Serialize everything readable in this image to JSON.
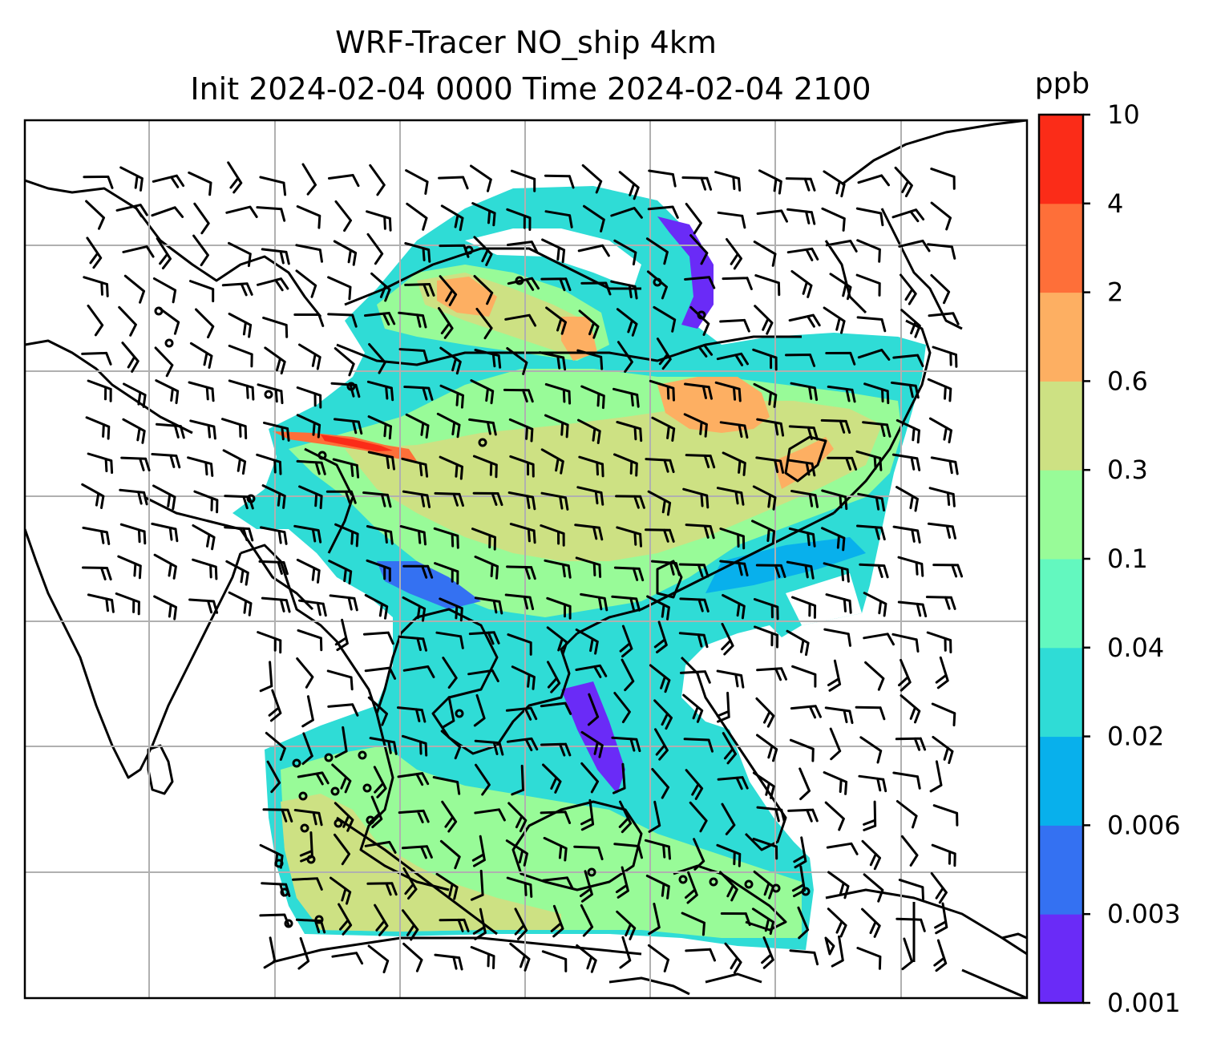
{
  "title": {
    "line1": "WRF-Tracer NO_ship 4km",
    "line2": "Init 2024-02-04 0000 Time 2024-02-04 2100"
  },
  "colorbar": {
    "unit": "ppb",
    "levels": [
      "0.001",
      "0.003",
      "0.006",
      "0.02",
      "0.04",
      "0.1",
      "0.3",
      "0.6",
      "2",
      "4",
      "10"
    ],
    "colors": [
      "#6a2bf7",
      "#3471f2",
      "#08b0ec",
      "#2fdcd6",
      "#63f8bf",
      "#98fb98",
      "#cde183",
      "#fdaf62",
      "#fe6f39",
      "#fb2c18"
    ]
  },
  "map": {
    "land_outline_color": "#000000",
    "grid_color": "#b0b0b0",
    "wind_barb_color": "#000000"
  }
}
